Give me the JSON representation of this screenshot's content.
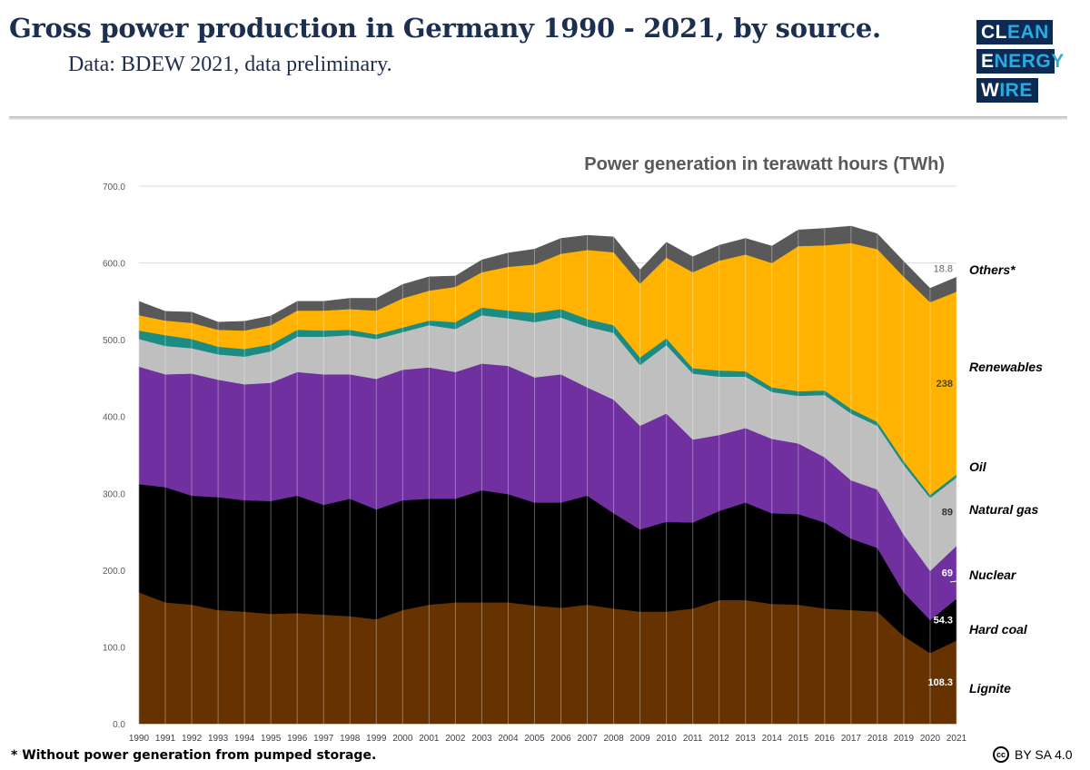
{
  "header": {
    "title": "Gross power production in Germany 1990 - 2021, by source.",
    "subtitle": "Data: BDEW 2021, data preliminary.",
    "logo": [
      "CLEAN",
      "ENERGY",
      "WIRE"
    ]
  },
  "footer": {
    "footnote": "* Without power generation from pumped storage.",
    "license": "BY SA 4.0",
    "cc_icon": "cc"
  },
  "chart_data": {
    "type": "area",
    "stacked": true,
    "title": "Power generation in terawatt hours (TWh)",
    "ylim": [
      0,
      700
    ],
    "yticks": [
      "0.0",
      "100.0",
      "200.0",
      "300.0",
      "400.0",
      "500.0",
      "600.0",
      "700.0"
    ],
    "grid": true,
    "x": [
      1990,
      1991,
      1992,
      1993,
      1994,
      1995,
      1996,
      1997,
      1998,
      1999,
      2000,
      2001,
      2002,
      2003,
      2004,
      2005,
      2006,
      2007,
      2008,
      2009,
      2010,
      2011,
      2012,
      2013,
      2014,
      2015,
      2016,
      2017,
      2018,
      2019,
      2020,
      2021
    ],
    "series": [
      {
        "name": "Lignite",
        "color": "#663300",
        "label_2021": "108.3",
        "label_color": "#ffffff",
        "values": [
          171,
          158,
          155,
          148,
          146,
          143,
          144,
          142,
          140,
          136,
          148,
          155,
          158,
          158,
          158,
          154,
          151,
          155,
          150,
          146,
          146,
          150,
          161,
          161,
          156,
          155,
          150,
          148,
          146,
          114,
          92,
          108.3
        ]
      },
      {
        "name": "Hard coal",
        "color": "#000000",
        "label_2021": "54.3",
        "label_color": "#ffffff",
        "values": [
          141,
          150,
          142,
          147,
          145,
          147,
          153,
          143,
          153,
          143,
          143,
          138,
          135,
          146,
          141,
          134,
          137,
          142,
          124,
          107,
          117,
          112,
          116,
          127,
          118,
          118,
          112,
          93,
          83,
          57,
          43,
          54.3
        ]
      },
      {
        "name": "Nuclear",
        "color": "#7030a0",
        "label_2021": "69",
        "label_color": "#ffffff",
        "values": [
          153,
          147,
          159,
          153,
          151,
          154,
          161,
          170,
          162,
          170,
          170,
          171,
          165,
          165,
          167,
          163,
          167,
          141,
          148,
          135,
          141,
          108,
          99,
          97,
          97,
          92,
          85,
          76,
          76,
          75,
          64,
          69
        ]
      },
      {
        "name": "Natural gas",
        "color": "#bfbfbf",
        "label_2021": "89",
        "label_color": "#333333",
        "values": [
          36,
          37,
          33,
          33,
          36,
          41,
          46,
          49,
          51,
          52,
          49,
          55,
          56,
          63,
          62,
          72,
          74,
          79,
          87,
          79,
          89,
          86,
          76,
          67,
          61,
          62,
          81,
          87,
          83,
          91,
          95,
          89
        ]
      },
      {
        "name": "Oil",
        "color": "#1b8c84",
        "label_2021": "",
        "label_color": "#333333",
        "values": [
          11,
          14,
          12,
          10,
          10,
          9,
          9,
          8,
          7,
          6,
          6,
          6,
          9,
          10,
          10,
          12,
          11,
          10,
          10,
          10,
          9,
          7,
          8,
          7,
          6,
          6,
          6,
          6,
          5,
          5,
          4,
          4
        ]
      },
      {
        "name": "Renewables",
        "color": "#ffb300",
        "label_2021": "238",
        "label_color": "#444444",
        "values": [
          20,
          19,
          21,
          22,
          24,
          25,
          25,
          26,
          27,
          31,
          38,
          39,
          46,
          46,
          57,
          63,
          72,
          90,
          95,
          96,
          105,
          125,
          143,
          152,
          162,
          189,
          189,
          216,
          225,
          240,
          251,
          238
        ]
      },
      {
        "name": "Others*",
        "color": "#595959",
        "label_2021": "18.8",
        "label_color": "#666666",
        "values": [
          18,
          12,
          14,
          10,
          12,
          12,
          12,
          12,
          14,
          16,
          18,
          18,
          14,
          16,
          18,
          20,
          20,
          19,
          20,
          18,
          20,
          20,
          20,
          21,
          22,
          21,
          22,
          22,
          20,
          20,
          18,
          18.8
        ]
      }
    ]
  }
}
